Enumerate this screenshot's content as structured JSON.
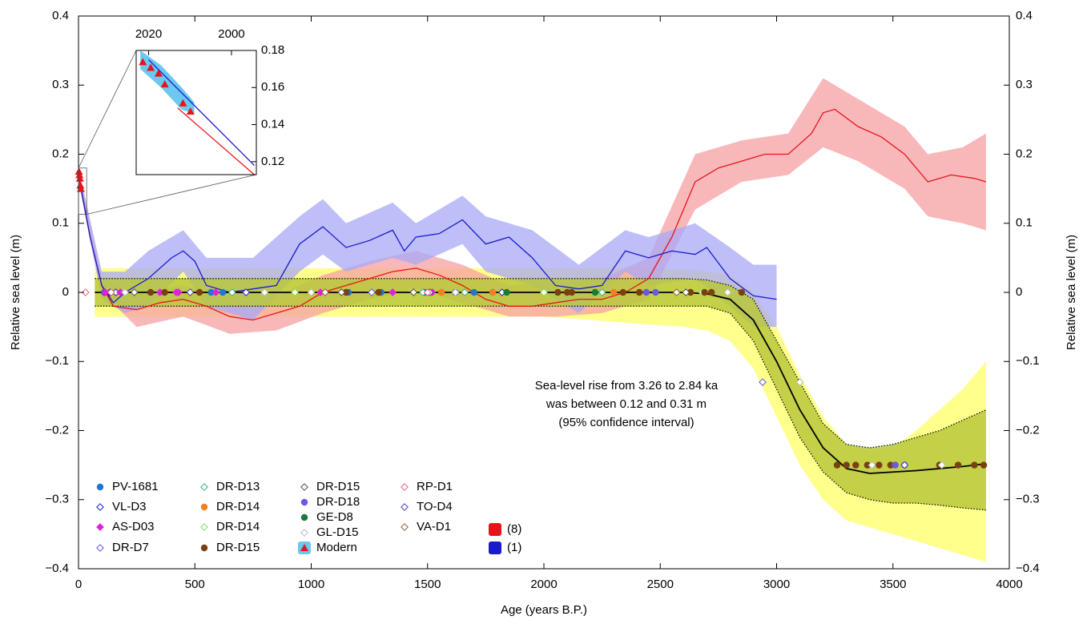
{
  "chart_data": {
    "type": "line",
    "xlabel": "Age (years B.P.)",
    "ylabel": "Relative sea level (m)",
    "y2label": "Relative sea level (m)",
    "xlim": [
      0,
      4000
    ],
    "ylim": [
      -0.4,
      0.4
    ],
    "xticks": [
      0,
      500,
      1000,
      1500,
      2000,
      2500,
      3000,
      3500,
      4000
    ],
    "yticks": [
      {
        "value": -0.4,
        "label": "−0.4"
      },
      {
        "value": -0.3,
        "label": "−0.3"
      },
      {
        "value": -0.2,
        "label": "−0.2"
      },
      {
        "value": -0.1,
        "label": "−0.1"
      },
      0,
      0.1,
      0.2,
      0.3,
      0.4
    ],
    "annotation": [
      "Sea-level rise from 3.26 to 2.84 ka",
      "was between 0.12 and 0.31 m",
      "(95% confidence interval)"
    ],
    "bands": [
      {
        "color": "#ffff66",
        "edge": "none",
        "x": [
          70,
          200,
          400,
          600,
          800,
          1000,
          1200,
          1400,
          1600,
          1800,
          2000,
          2200,
          2400,
          2600,
          2700,
          2800,
          2900,
          3000,
          3100,
          3200,
          3300,
          3400,
          3500,
          3600,
          3700,
          3800,
          3900
        ],
        "upper": [
          0.035,
          0.035,
          0.035,
          0.035,
          0.035,
          0.035,
          0.035,
          0.035,
          0.035,
          0.035,
          0.035,
          0.035,
          0.035,
          0.033,
          0.03,
          0.025,
          0,
          -0.05,
          -0.12,
          -0.18,
          -0.22,
          -0.23,
          -0.225,
          -0.2,
          -0.17,
          -0.14,
          -0.1
        ],
        "lower": [
          -0.035,
          -0.035,
          -0.035,
          -0.035,
          -0.035,
          -0.035,
          -0.035,
          -0.035,
          -0.035,
          -0.035,
          -0.035,
          -0.04,
          -0.045,
          -0.05,
          -0.055,
          -0.07,
          -0.11,
          -0.18,
          -0.25,
          -0.3,
          -0.33,
          -0.34,
          -0.35,
          -0.36,
          -0.37,
          -0.38,
          -0.39
        ]
      },
      {
        "color": "#f5a0a3",
        "edge": "none",
        "x": [
          0,
          100,
          250,
          450,
          650,
          850,
          1050,
          1250,
          1450,
          1650,
          1850,
          2050,
          2250,
          2450,
          2650,
          2850,
          3050,
          3200,
          3350,
          3550,
          3650,
          3800,
          3900
        ],
        "upper": [
          0.18,
          0.02,
          0,
          0.01,
          -0.01,
          -0.005,
          0.025,
          0.045,
          0.06,
          0.04,
          0.01,
          0.015,
          0.02,
          0.05,
          0.2,
          0.22,
          0.23,
          0.31,
          0.28,
          0.24,
          0.2,
          0.21,
          0.23
        ],
        "lower": [
          0.16,
          0,
          -0.05,
          -0.035,
          -0.06,
          -0.055,
          -0.03,
          -0.01,
          0.005,
          -0.015,
          -0.035,
          -0.035,
          -0.03,
          -0.01,
          0.12,
          0.16,
          0.17,
          0.21,
          0.19,
          0.15,
          0.11,
          0.1,
          0.09
        ]
      },
      {
        "color": "#a8a8f5",
        "edge": "none",
        "x": [
          0,
          100,
          200,
          300,
          450,
          550,
          750,
          950,
          1050,
          1150,
          1350,
          1450,
          1650,
          1750,
          1950,
          2150,
          2350,
          2450,
          2650,
          2800,
          2900,
          3000
        ],
        "upper": [
          0.18,
          0.03,
          0.03,
          0.06,
          0.09,
          0.05,
          0.05,
          0.11,
          0.135,
          0.1,
          0.13,
          0.1,
          0.14,
          0.11,
          0.09,
          0.04,
          0.09,
          0.08,
          0.1,
          0.065,
          0.04,
          0.04
        ],
        "lower": [
          0.16,
          -0.01,
          -0.03,
          -0.02,
          0.03,
          -0.02,
          -0.04,
          0.03,
          0.055,
          0.03,
          0.05,
          0.04,
          0.07,
          0.03,
          0.01,
          -0.03,
          0.03,
          0.01,
          0.02,
          -0.02,
          -0.05,
          -0.05
        ]
      },
      {
        "color": "#b9c83c",
        "edge": "dotted",
        "x": [
          70,
          200,
          400,
          600,
          800,
          1000,
          1200,
          1400,
          1600,
          1800,
          2000,
          2200,
          2400,
          2600,
          2700,
          2800,
          2900,
          3000,
          3100,
          3200,
          3300,
          3400,
          3500,
          3600,
          3700,
          3800,
          3900
        ],
        "upper": [
          0.02,
          0.02,
          0.02,
          0.02,
          0.02,
          0.02,
          0.02,
          0.02,
          0.02,
          0.02,
          0.02,
          0.02,
          0.02,
          0.02,
          0.018,
          0.01,
          -0.01,
          -0.07,
          -0.13,
          -0.19,
          -0.22,
          -0.225,
          -0.22,
          -0.21,
          -0.2,
          -0.185,
          -0.17
        ],
        "lower": [
          -0.02,
          -0.02,
          -0.02,
          -0.02,
          -0.02,
          -0.02,
          -0.02,
          -0.02,
          -0.02,
          -0.02,
          -0.02,
          -0.02,
          -0.02,
          -0.02,
          -0.02,
          -0.03,
          -0.07,
          -0.14,
          -0.21,
          -0.26,
          -0.29,
          -0.3,
          -0.305,
          -0.305,
          -0.308,
          -0.312,
          -0.315
        ]
      }
    ],
    "lines": [
      {
        "name": "(8)",
        "color": "#e8141a",
        "x": [
          0,
          50,
          100,
          150,
          250,
          350,
          450,
          550,
          650,
          750,
          850,
          950,
          1050,
          1150,
          1250,
          1350,
          1450,
          1550,
          1650,
          1750,
          1850,
          1950,
          2050,
          2150,
          2250,
          2350,
          2450,
          2550,
          2650,
          2750,
          2850,
          2950,
          3050,
          3150,
          3200,
          3250,
          3350,
          3450,
          3550,
          3650,
          3750,
          3850,
          3900
        ],
        "values": [
          0.17,
          0.08,
          0.01,
          -0.02,
          -0.025,
          -0.015,
          -0.01,
          -0.02,
          -0.035,
          -0.04,
          -0.03,
          -0.02,
          0,
          0.01,
          0.02,
          0.03,
          0.035,
          0.025,
          0.01,
          -0.01,
          -0.02,
          -0.02,
          -0.015,
          -0.01,
          -0.01,
          0,
          0.02,
          0.08,
          0.16,
          0.18,
          0.19,
          0.2,
          0.2,
          0.23,
          0.26,
          0.265,
          0.24,
          0.225,
          0.2,
          0.16,
          0.17,
          0.165,
          0.16
        ]
      },
      {
        "name": "(1)",
        "color": "#1a1acc",
        "x": [
          0,
          50,
          100,
          150,
          200,
          300,
          400,
          450,
          500,
          550,
          650,
          750,
          850,
          950,
          1050,
          1150,
          1250,
          1350,
          1400,
          1450,
          1550,
          1650,
          1750,
          1850,
          1950,
          2050,
          2150,
          2250,
          2350,
          2450,
          2550,
          2650,
          2700,
          2800,
          2900,
          3000
        ],
        "values": [
          0.17,
          0.08,
          0.01,
          -0.015,
          0,
          0.02,
          0.05,
          0.06,
          0.045,
          0.01,
          0,
          0.005,
          0.01,
          0.07,
          0.095,
          0.065,
          0.075,
          0.09,
          0.06,
          0.08,
          0.085,
          0.105,
          0.07,
          0.08,
          0.05,
          0.01,
          0.005,
          0.01,
          0.06,
          0.05,
          0.06,
          0.055,
          0.065,
          0.02,
          -0.005,
          -0.01
        ]
      },
      {
        "color": "#000000",
        "x": [
          70,
          200,
          400,
          600,
          800,
          1000,
          1200,
          1400,
          1600,
          1800,
          2000,
          2200,
          2400,
          2600,
          2700,
          2800,
          2900,
          3000,
          3100,
          3200,
          3300,
          3400,
          3500,
          3600,
          3700,
          3800,
          3900
        ],
        "values": [
          0,
          0,
          0,
          0,
          0,
          0,
          0,
          0,
          0,
          0,
          0,
          0,
          0,
          0,
          -0.002,
          -0.01,
          -0.04,
          -0.1,
          -0.17,
          -0.225,
          -0.255,
          -0.262,
          -0.26,
          -0.258,
          -0.255,
          -0.252,
          -0.248
        ]
      }
    ],
    "series": [
      {
        "name": "PV-1681",
        "color": "#1f78d0",
        "marker": "circle",
        "x": [
          570,
          620,
          1160,
          1300,
          1490,
          1620,
          1700,
          1780
        ],
        "values": [
          0,
          0,
          0,
          0,
          0,
          0,
          0,
          0
        ]
      },
      {
        "name": "VL-D3",
        "color": "#2020c0",
        "marker": "diamond-open",
        "x": [
          110,
          135,
          160,
          720,
          1820
        ],
        "values": [
          0,
          0,
          0,
          0,
          0
        ]
      },
      {
        "name": "AS-D03",
        "color": "#e020e0",
        "marker": "diamond",
        "x": [
          115,
          180,
          350,
          420,
          430,
          590,
          1040,
          1350,
          1500,
          1520
        ],
        "values": [
          0,
          0,
          0,
          0,
          0,
          0,
          0,
          0,
          0,
          0
        ]
      },
      {
        "name": "DR-D7",
        "color": "#5a5ae0",
        "marker": "diamond-open",
        "x": [
          1260,
          2940
        ],
        "values": [
          0,
          -0.13
        ]
      },
      {
        "name": "DR-D13",
        "color": "#30b090",
        "marker": "diamond-open",
        "x": [
          660,
          1480,
          1660,
          2250
        ],
        "values": [
          0,
          0,
          0,
          0
        ]
      },
      {
        "name": "DR-D14",
        "color": "#f08020",
        "marker": "circle",
        "x": [
          1560,
          1780,
          2300
        ],
        "values": [
          0,
          0,
          0
        ]
      },
      {
        "name": "DR-D14",
        "color": "#80e060",
        "marker": "diamond-open",
        "x": [
          930,
          2000,
          2680
        ],
        "values": [
          0,
          0,
          0
        ]
      },
      {
        "name": "DR-D15",
        "color": "#7a4010",
        "marker": "circle",
        "x": [
          310,
          370,
          520,
          1150,
          1290,
          2060,
          2100,
          2120,
          2340,
          2410,
          2630,
          2690,
          2720,
          2850,
          3260,
          3300,
          3340,
          3390,
          3440,
          3490,
          3700,
          3780,
          3850,
          3890
        ],
        "values": [
          0,
          0,
          0,
          0,
          0,
          0,
          0,
          0,
          0,
          0,
          0,
          0,
          0,
          0,
          -0.25,
          -0.25,
          -0.25,
          -0.25,
          -0.25,
          -0.25,
          -0.25,
          -0.25,
          -0.25,
          -0.25
        ]
      },
      {
        "name": "DR-D15",
        "color": "#505050",
        "marker": "diamond-open",
        "x": [
          240,
          1130,
          1440,
          1510,
          2610
        ],
        "values": [
          0,
          0,
          0,
          0,
          0
        ]
      },
      {
        "name": "DR-D18",
        "color": "#6a5ae0",
        "marker": "circle",
        "x": [
          2440,
          2480,
          3510,
          3550
        ],
        "values": [
          0,
          0,
          -0.25,
          -0.25
        ]
      },
      {
        "name": "GE-D8",
        "color": "#1a7a3a",
        "marker": "circle",
        "x": [
          1840,
          2220
        ],
        "values": [
          0,
          0
        ]
      },
      {
        "name": "GL-D15",
        "color": "#bbbbbb",
        "marker": "diamond-open",
        "x": [
          200,
          800,
          1000,
          1620,
          2790,
          3100,
          3410,
          3710
        ],
        "values": [
          0,
          0,
          0,
          0,
          0,
          -0.13,
          -0.25,
          -0.25
        ]
      },
      {
        "name": "Modern",
        "color": "#e8141a",
        "background": "#6cc8f0",
        "marker": "triangle",
        "x": [
          2,
          4,
          6,
          8,
          10
        ],
        "values": [
          0.175,
          0.17,
          0.165,
          0.155,
          0.15
        ]
      },
      {
        "name": "RP-D1",
        "color": "#f06080",
        "marker": "diamond-open",
        "x": [
          30,
          140,
          1500
        ],
        "values": [
          0,
          0,
          0
        ]
      },
      {
        "name": "TO-D4",
        "color": "#4040c0",
        "marker": "diamond-open",
        "x": [
          480,
          3550
        ],
        "values": [
          0,
          -0.25
        ]
      },
      {
        "name": "VA-D1",
        "color": "#8a6040",
        "marker": "diamond-open",
        "x": [
          1060,
          2570
        ],
        "values": [
          0,
          0
        ]
      }
    ],
    "inset": {
      "xlim": [
        2023,
        1994
      ],
      "ylim": [
        0.113,
        0.18
      ],
      "xticks": [
        2020,
        2000
      ],
      "yticks": [
        0.18,
        0.16,
        0.14,
        0.12
      ],
      "band": {
        "color": "#6cc8f0",
        "x": [
          2022,
          2017,
          2012,
          2009
        ],
        "upper": [
          0.18,
          0.172,
          0.16,
          0.152
        ],
        "lower": [
          0.17,
          0.16,
          0.148,
          0.146
        ]
      },
      "lines": [
        {
          "color": "#1a1acc",
          "x": [
            2020,
            1994.5
          ],
          "values": [
            0.175,
            0.118
          ]
        },
        {
          "color": "#e8141a",
          "x": [
            2013,
            1994.5
          ],
          "values": [
            0.149,
            0.113
          ]
        }
      ],
      "points": {
        "color": "#e8141a",
        "x": [
          2021.4,
          2019.5,
          2017.6,
          2016.1,
          2011.7,
          2009.9
        ],
        "values": [
          0.1738,
          0.1707,
          0.1676,
          0.1618,
          0.1516,
          0.1471
        ]
      }
    }
  }
}
